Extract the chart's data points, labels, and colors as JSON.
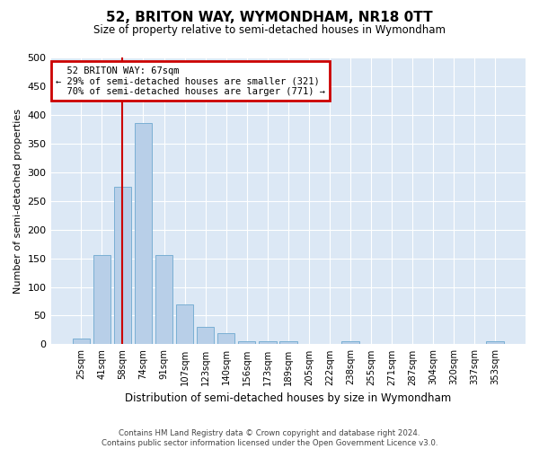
{
  "title": "52, BRITON WAY, WYMONDHAM, NR18 0TT",
  "subtitle": "Size of property relative to semi-detached houses in Wymondham",
  "xlabel": "Distribution of semi-detached houses by size in Wymondham",
  "ylabel": "Number of semi-detached properties",
  "categories": [
    "25sqm",
    "41sqm",
    "58sqm",
    "74sqm",
    "91sqm",
    "107sqm",
    "123sqm",
    "140sqm",
    "156sqm",
    "173sqm",
    "189sqm",
    "205sqm",
    "222sqm",
    "238sqm",
    "255sqm",
    "271sqm",
    "287sqm",
    "304sqm",
    "320sqm",
    "337sqm",
    "353sqm"
  ],
  "values": [
    10,
    155,
    275,
    385,
    155,
    70,
    30,
    20,
    5,
    5,
    5,
    0,
    0,
    5,
    0,
    0,
    0,
    0,
    0,
    0,
    5
  ],
  "bar_color": "#b8cfe8",
  "bar_edge_color": "#7aafd4",
  "property_label": "52 BRITON WAY: 67sqm",
  "smaller_pct": "29%",
  "smaller_count": 321,
  "larger_pct": "70%",
  "larger_count": 771,
  "vline_x": 2.0,
  "annotation_box_edge": "#cc0000",
  "vline_color": "#cc0000",
  "plot_background": "#dce8f5",
  "fig_background": "#ffffff",
  "ylim": [
    0,
    500
  ],
  "yticks": [
    0,
    50,
    100,
    150,
    200,
    250,
    300,
    350,
    400,
    450,
    500
  ],
  "footer_line1": "Contains HM Land Registry data © Crown copyright and database right 2024.",
  "footer_line2": "Contains public sector information licensed under the Open Government Licence v3.0."
}
